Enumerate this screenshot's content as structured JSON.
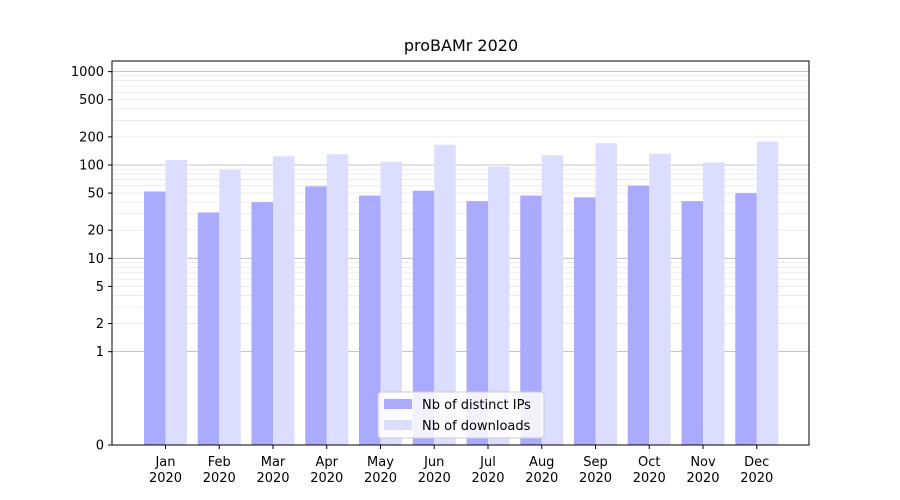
{
  "chart_data": {
    "type": "bar",
    "title": "proBAMr 2020",
    "xlabel": "",
    "ylabel": "",
    "yscale": "symlog",
    "ylim": [
      0,
      1300
    ],
    "yticks": [
      {
        "value": 0,
        "label": "0"
      },
      {
        "value": 1,
        "label": "1"
      },
      {
        "value": 2,
        "label": "2"
      },
      {
        "value": 5,
        "label": "5"
      },
      {
        "value": 10,
        "label": "10"
      },
      {
        "value": 20,
        "label": "20"
      },
      {
        "value": 50,
        "label": "50"
      },
      {
        "value": 100,
        "label": "100"
      },
      {
        "value": 200,
        "label": "200"
      },
      {
        "value": 500,
        "label": "500"
      },
      {
        "value": 1000,
        "label": "1000"
      }
    ],
    "categories": [
      {
        "month": "Jan",
        "year": "2020"
      },
      {
        "month": "Feb",
        "year": "2020"
      },
      {
        "month": "Mar",
        "year": "2020"
      },
      {
        "month": "Apr",
        "year": "2020"
      },
      {
        "month": "May",
        "year": "2020"
      },
      {
        "month": "Jun",
        "year": "2020"
      },
      {
        "month": "Jul",
        "year": "2020"
      },
      {
        "month": "Aug",
        "year": "2020"
      },
      {
        "month": "Sep",
        "year": "2020"
      },
      {
        "month": "Oct",
        "year": "2020"
      },
      {
        "month": "Nov",
        "year": "2020"
      },
      {
        "month": "Dec",
        "year": "2020"
      }
    ],
    "series": [
      {
        "name": "Nb of distinct IPs",
        "color": "#aaaaff",
        "values": [
          52,
          31,
          40,
          59,
          47,
          53,
          41,
          47,
          45,
          60,
          41,
          50
        ]
      },
      {
        "name": "Nb of downloads",
        "color": "#ddddff",
        "values": [
          113,
          88,
          124,
          130,
          108,
          165,
          96,
          127,
          171,
          132,
          106,
          178
        ]
      }
    ],
    "grid": true,
    "legend_position": "lower-center"
  }
}
